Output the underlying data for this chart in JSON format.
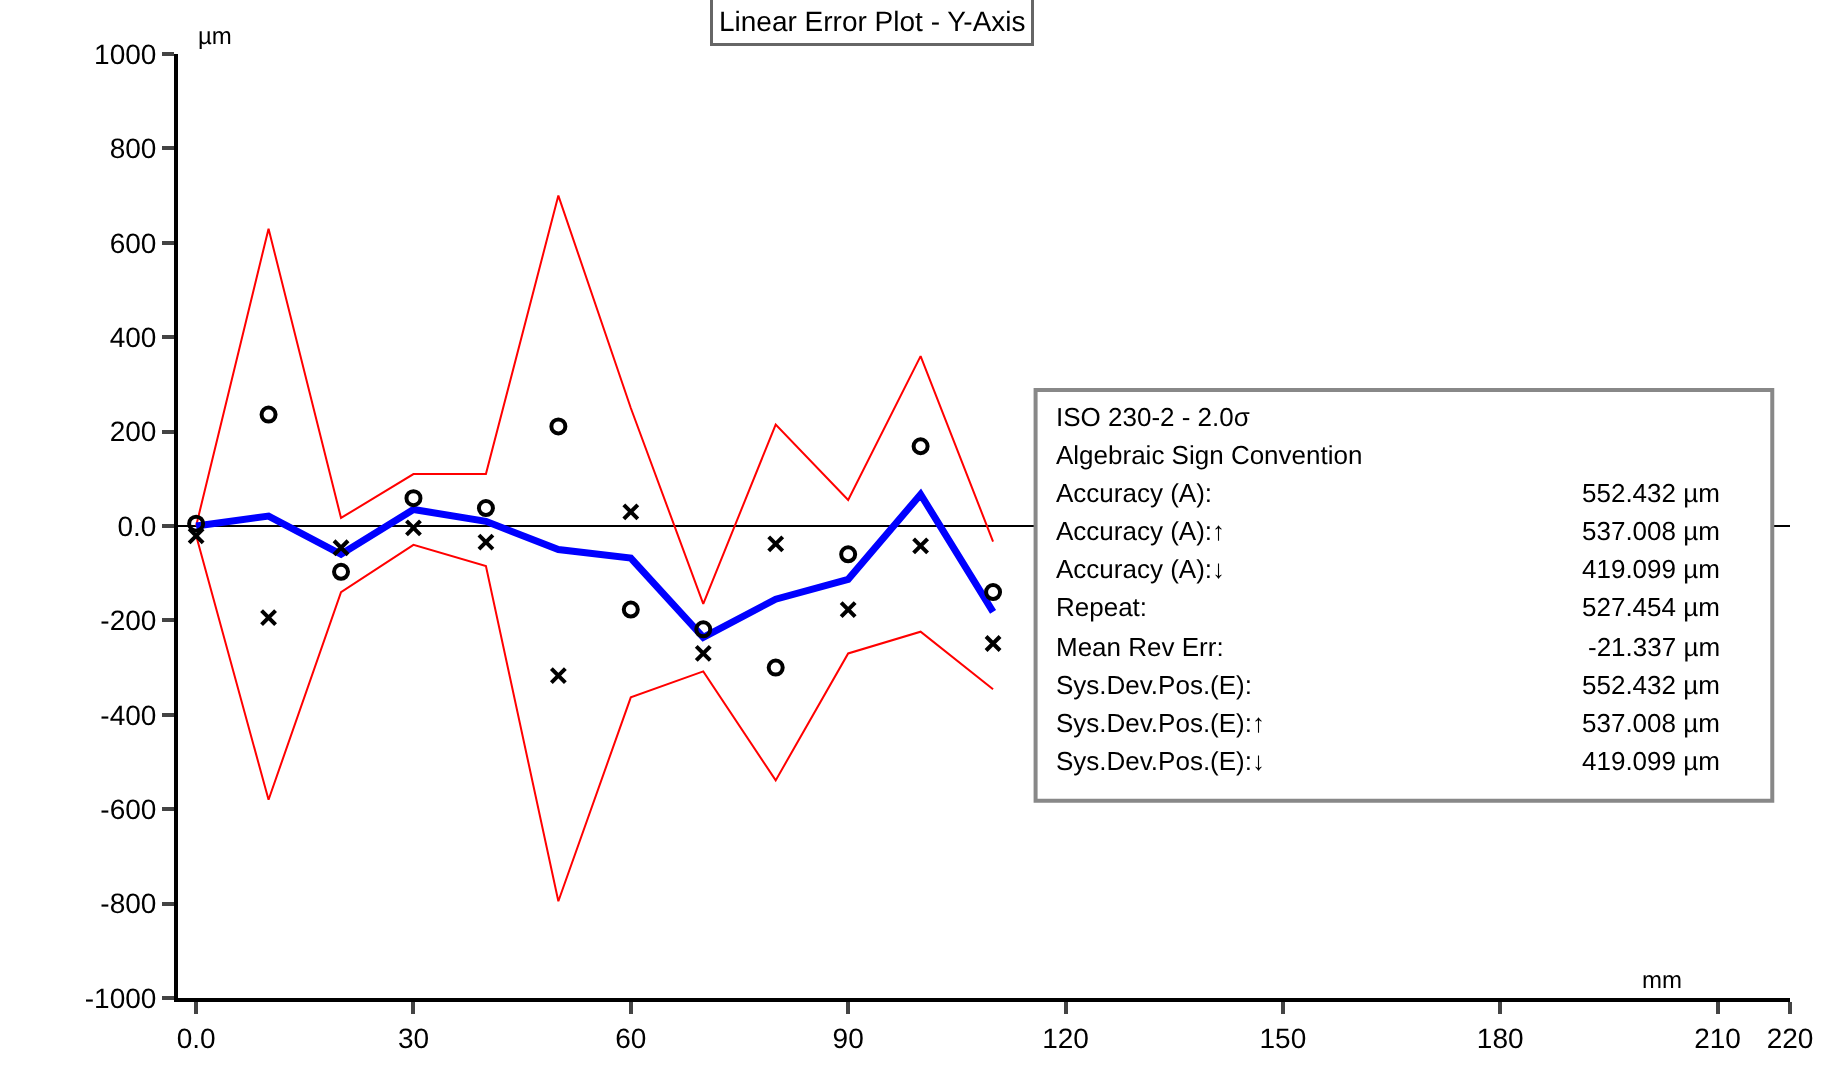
{
  "chart_data": {
    "type": "line",
    "title": "Linear Error Plot - Y-Axis",
    "xlabel": "mm",
    "ylabel": "µm",
    "x": [
      0,
      10,
      20,
      30,
      40,
      50,
      60,
      70,
      80,
      90,
      100,
      110
    ],
    "series": [
      {
        "color": "#ff0000",
        "line_style": "solid",
        "marker": "none",
        "values": [
          0,
          630,
          17,
          110,
          110,
          700,
          250,
          -165,
          215,
          55,
          360,
          -33
        ]
      },
      {
        "color": "#ff0000",
        "line_style": "solid",
        "marker": "none",
        "values": [
          -20,
          -580,
          -140,
          -40,
          -85,
          -795,
          -363,
          -308,
          -539,
          -270,
          -224,
          -346
        ]
      },
      {
        "color": "#0000ff",
        "line_style": "solid",
        "marker": "none",
        "values": [
          0,
          21,
          -60,
          35,
          10,
          -50,
          -68,
          -236,
          -155,
          -113,
          67,
          -182
        ]
      },
      {
        "type": "scatter",
        "color": "#000000",
        "marker": "circle",
        "x": [
          0,
          10,
          20,
          30,
          40,
          50,
          60,
          70,
          80,
          90,
          100,
          110
        ],
        "values": [
          5,
          236,
          -97,
          59,
          38,
          211,
          -177,
          -219,
          -300,
          -60,
          169,
          -140
        ]
      },
      {
        "type": "scatter",
        "color": "#000000",
        "marker": "cross",
        "x": [
          0,
          10,
          20,
          30,
          40,
          50,
          60,
          70,
          80,
          90,
          100,
          110
        ],
        "values": [
          -21,
          -194,
          -46,
          -4,
          -34,
          -317,
          30,
          -270,
          -38,
          -177,
          -42,
          -249
        ]
      }
    ],
    "xlim": [
      -2.5,
      220
    ],
    "xticks": [
      {
        "value": 0,
        "label": "0.0"
      },
      30,
      60,
      90,
      120,
      150,
      180,
      210,
      220
    ],
    "ylim": [
      -1000,
      1000
    ],
    "yticks": [
      -1000,
      -800,
      -600,
      -400,
      -200,
      {
        "value": 0,
        "label": "0.0"
      },
      200,
      400,
      600,
      800,
      1000
    ],
    "ref_lines": [
      {
        "axis": "y",
        "value": 0,
        "color": "#000000"
      }
    ],
    "annotations": [
      "ISO 230-2 - 2.0σ",
      "Algebraic Sign Convention",
      "Accuracy (A):",
      "552.432 µm",
      "Accuracy (A):↑",
      "537.008 µm",
      "Accuracy (A):↓",
      "419.099 µm",
      "Repeat:",
      "527.454 µm",
      "Mean Rev Err:",
      "-21.337 µm",
      "Sys.Dev.Pos.(E):",
      "552.432 µm",
      "Sys.Dev.Pos.(E):↑",
      "537.008 µm",
      "Sys.Dev.Pos.(E):↓",
      "419.099 µm"
    ]
  }
}
